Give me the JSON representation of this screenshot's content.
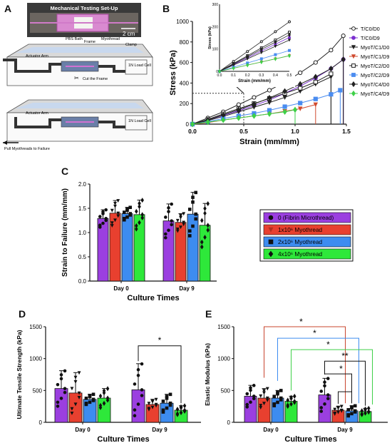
{
  "panels": {
    "a": "A",
    "b": "B",
    "c": "C",
    "d": "D",
    "e": "E"
  },
  "setup": {
    "photo_title": "Mechanical Testing Set-Up",
    "scale_bar": "2 cm",
    "labels": {
      "pbs_bath": "PBS Bath",
      "frame": "Frame",
      "myothread": "Myothread",
      "clamp": "Clamp",
      "actuator_arm": "Actuator Arm",
      "cut_frame": "Cut the\nFrame",
      "load_cell": "1N Load\nCell",
      "pull": "Pull Myothreads\nto Failure"
    }
  },
  "colors": {
    "fibrin": "#9b3fe0",
    "m1": "#e8402f",
    "m2": "#3d8cf0",
    "m4": "#2ee83a"
  },
  "legend_c": [
    "0 (Fibrin Microthread)",
    "1x10⁶ Myothread",
    "2x10⁶ Myothread",
    "4x10⁶ Myothread"
  ],
  "chart_data": [
    {
      "id": "B",
      "type": "line",
      "xlabel": "Strain (mm/mm)",
      "ylabel": "Stress (kPa)",
      "xlim": [
        0,
        1.5
      ],
      "ylim": [
        0,
        1000
      ],
      "xticks": [
        "0.0",
        "0.5",
        "1.0",
        "1.5"
      ],
      "yticks": [
        "0",
        "200",
        "400",
        "600",
        "800",
        "1000"
      ],
      "legend": [
        "T/C0/D0",
        "T/C0/D9",
        "MyoT/C1/D0",
        "MyoT/C1/D9",
        "MyoT/C2/D0",
        "MyoT/C2/D9",
        "MyoT/C4/D0",
        "MyoT/C4/D9"
      ],
      "series": [
        {
          "name": "T/C0/D0",
          "color": "#222222",
          "marker": "circle-open",
          "x": [
            0,
            0.15,
            0.3,
            0.45,
            0.6,
            0.75,
            0.9,
            1.05,
            1.2,
            1.35,
            1.47
          ],
          "y": [
            0,
            60,
            120,
            190,
            260,
            330,
            410,
            500,
            600,
            720,
            860
          ]
        },
        {
          "name": "T/C0/D9",
          "color": "#7b2fd0",
          "marker": "circle",
          "x": [
            0,
            0.15,
            0.3,
            0.45,
            0.6,
            0.75,
            0.9,
            1.05,
            1.2,
            1.35,
            1.47
          ],
          "y": [
            0,
            40,
            85,
            130,
            180,
            235,
            300,
            370,
            450,
            540,
            630
          ]
        },
        {
          "name": "MyoT/C1/D0",
          "color": "#222222",
          "marker": "tri-down",
          "x": [
            0,
            0.15,
            0.3,
            0.45,
            0.6,
            0.75,
            0.9,
            1.05,
            1.2,
            1.35
          ],
          "y": [
            0,
            35,
            75,
            120,
            165,
            210,
            260,
            320,
            390,
            460
          ]
        },
        {
          "name": "MyoT/C1/D9",
          "color": "#d04a2e",
          "marker": "tri-down-red",
          "x": [
            0,
            0.15,
            0.3,
            0.45,
            0.6,
            0.75,
            0.9,
            1.05,
            1.2
          ],
          "y": [
            0,
            15,
            40,
            60,
            80,
            100,
            125,
            150,
            190
          ]
        },
        {
          "name": "MyoT/C2/D0",
          "color": "#222222",
          "marker": "square-open",
          "x": [
            0,
            0.15,
            0.3,
            0.45,
            0.6,
            0.75,
            0.9,
            1.05,
            1.2,
            1.35
          ],
          "y": [
            0,
            45,
            100,
            150,
            200,
            250,
            300,
            350,
            410,
            490
          ]
        },
        {
          "name": "MyoT/C2/D9",
          "color": "#4a8cf0",
          "marker": "square",
          "x": [
            0,
            0.15,
            0.3,
            0.45,
            0.6,
            0.75,
            0.9,
            1.05,
            1.2,
            1.35,
            1.44
          ],
          "y": [
            0,
            25,
            55,
            80,
            105,
            135,
            170,
            205,
            245,
            290,
            330
          ]
        },
        {
          "name": "MyoT/C4/D0",
          "color": "#222222",
          "marker": "diamond",
          "x": [
            0,
            0.15,
            0.3,
            0.45,
            0.6,
            0.75,
            0.9,
            1.05,
            1.2,
            1.35,
            1.47
          ],
          "y": [
            0,
            40,
            90,
            140,
            195,
            255,
            320,
            390,
            460,
            540,
            630
          ]
        },
        {
          "name": "MyoT/C4/D9",
          "color": "#3ed048",
          "marker": "diamond-green",
          "x": [
            0,
            0.15,
            0.3,
            0.45,
            0.6,
            0.75,
            0.9,
            1.0
          ],
          "y": [
            0,
            20,
            40,
            60,
            80,
            100,
            120,
            140
          ]
        }
      ],
      "inset": {
        "xlabel": "Strain (mm/mm)",
        "ylabel": "Stress (kPa)",
        "xlim": [
          0,
          0.5
        ],
        "ylim": [
          0,
          300
        ],
        "xticks": [
          "0.0",
          "0.1",
          "0.2",
          "0.3",
          "0.4",
          "0.5"
        ],
        "yticks": [
          "0",
          "100",
          "200",
          "300"
        ]
      }
    },
    {
      "id": "C",
      "type": "bar",
      "xlabel": "Culture Times",
      "ylabel": "Strain to Failure  (mm/mm)",
      "ylim": [
        0,
        2.0
      ],
      "yticks": [
        "0.0",
        "0.5",
        "1.0",
        "1.5",
        "2.0"
      ],
      "categories": [
        "Day 0",
        "Day 9"
      ],
      "series": [
        {
          "name": "0 (Fibrin Microthread)",
          "values": [
            1.29,
            1.24
          ],
          "errors": [
            0.18,
            0.35
          ]
        },
        {
          "name": "1x10⁶ Myothread",
          "values": [
            1.4,
            1.21
          ],
          "errors": [
            0.26,
            0.18
          ]
        },
        {
          "name": "2x10⁶ Myothread",
          "values": [
            1.39,
            1.38
          ],
          "errors": [
            0.13,
            0.45
          ]
        },
        {
          "name": "4x10⁶ Myothread",
          "values": [
            1.37,
            1.15
          ],
          "errors": [
            0.3,
            0.45
          ]
        }
      ]
    },
    {
      "id": "D",
      "type": "bar",
      "xlabel": "Culture Times",
      "ylabel": "Ultimate Tensile Strength (kPa)",
      "ylim": [
        0,
        1500
      ],
      "yticks": [
        "0",
        "500",
        "1000",
        "1500"
      ],
      "categories": [
        "Day 0",
        "Day 9"
      ],
      "series": [
        {
          "name": "0 (Fibrin Microthread)",
          "values": [
            530,
            510
          ],
          "errors": [
            280,
            410
          ]
        },
        {
          "name": "1x10⁶ Myothread",
          "values": [
            460,
            280
          ],
          "errors": [
            320,
            80
          ]
        },
        {
          "name": "2x10⁶ Myothread",
          "values": [
            360,
            300
          ],
          "errors": [
            80,
            140
          ]
        },
        {
          "name": "4x10⁶ Myothread",
          "values": [
            380,
            190
          ],
          "errors": [
            150,
            70
          ]
        }
      ],
      "annotations": [
        "*"
      ]
    },
    {
      "id": "E",
      "type": "bar",
      "xlabel": "Culture Times",
      "ylabel": "Elastic Modulus (kPa)",
      "ylim": [
        0,
        1500
      ],
      "yticks": [
        "0",
        "500",
        "1000",
        "1500"
      ],
      "categories": [
        "Day 0",
        "Day 9"
      ],
      "series": [
        {
          "name": "0 (Fibrin Microthread)",
          "values": [
            410,
            430
          ],
          "errors": [
            170,
            260
          ]
        },
        {
          "name": "1x10⁶ Myothread",
          "values": [
            380,
            190
          ],
          "errors": [
            150,
            60
          ]
        },
        {
          "name": "2x10⁶ Myothread",
          "values": [
            380,
            180
          ],
          "errors": [
            120,
            80
          ]
        },
        {
          "name": "4x10⁶ Myothread",
          "values": [
            330,
            170
          ],
          "errors": [
            80,
            50
          ]
        }
      ],
      "annotations": [
        "*",
        "*",
        "*",
        "**",
        "*"
      ]
    }
  ]
}
